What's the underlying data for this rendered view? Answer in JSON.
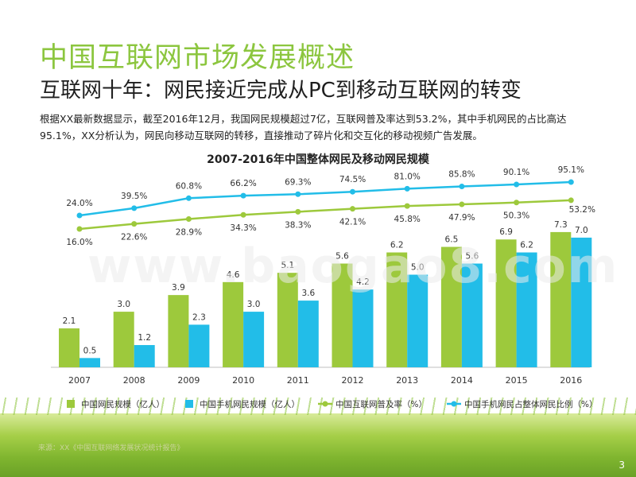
{
  "slide": {
    "title": "中国互联网市场发展概述",
    "subtitle": "互联网十年：网民接近完成从PC到移动互联网的转变",
    "description": "根据XX最新数据显示，截至2016年12月，我国网民规模超过7亿，互联网普及率达到53.2%，其中手机网民的占比高达95.1%，XX分析认为，网民向移动互联网的转移，直接推动了碎片化和交互化的移动视频广告发展。",
    "source": "来源：XX《中国互联网络发展状况统计报告》",
    "watermark": "www.baogao8.com",
    "page_number": "3"
  },
  "chart_data": {
    "type": "bar",
    "title": "2007-2016年中国整体网民及移动网民规模",
    "categories": [
      "2007",
      "2008",
      "2009",
      "2010",
      "2011",
      "2012",
      "2013",
      "2014",
      "2015",
      "2016"
    ],
    "series": [
      {
        "name": "中国网民规模（亿人）",
        "type": "bar",
        "color": "#9dc93c",
        "values": [
          2.1,
          3.0,
          3.9,
          4.6,
          5.1,
          5.6,
          6.2,
          6.5,
          6.9,
          7.3
        ]
      },
      {
        "name": "中国手机网民规模（亿人）",
        "type": "bar",
        "color": "#22bde8",
        "values": [
          0.5,
          1.2,
          2.3,
          3.0,
          3.6,
          4.2,
          5.0,
          5.6,
          6.2,
          7.0
        ]
      },
      {
        "name": "中国互联网普及率（%）",
        "type": "line",
        "color": "#9dc93c",
        "values": [
          16.0,
          22.6,
          28.9,
          34.3,
          38.3,
          42.1,
          45.8,
          47.9,
          50.3,
          53.2
        ]
      },
      {
        "name": "中国手机网民占整体网民比例（%）",
        "type": "line",
        "color": "#22bde8",
        "values": [
          24.0,
          39.5,
          60.8,
          66.2,
          69.3,
          74.5,
          81.0,
          85.8,
          90.1,
          95.1
        ]
      }
    ],
    "bar_ylim": [
      0,
      8
    ],
    "line_ylim": [
      0,
      100
    ],
    "legend_position": "bottom",
    "grid": false
  }
}
